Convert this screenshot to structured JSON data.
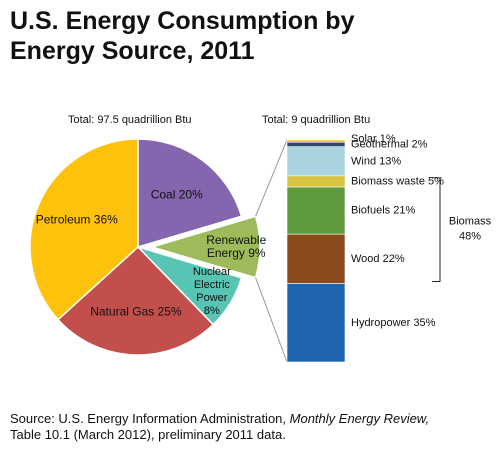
{
  "title": "U.S. Energy Consumption by Energy Source, 2011",
  "chart_data": [
    {
      "type": "pie",
      "subtitle": "Total:  97.5 quadrillion Btu",
      "categories": [
        "Coal",
        "Renewable Energy",
        "Nuclear Electric Power",
        "Natural Gas",
        "Petroleum"
      ],
      "values": [
        20,
        9,
        8,
        25,
        36
      ],
      "value_labels": [
        "20%",
        "9%",
        "8%",
        "25%",
        "36%"
      ],
      "colors": [
        "#8466ae",
        "#9dbb5b",
        "#57c4b4",
        "#c24f4c",
        "#fec20c"
      ]
    },
    {
      "type": "stacked_bar",
      "subtitle": "Total:  9 quadrillion Btu",
      "categories": [
        "Solar",
        "Geothermal",
        "Wind",
        "Biomass waste",
        "Biofuels",
        "Wood",
        "Hydropower"
      ],
      "values": [
        1,
        2,
        13,
        5,
        21,
        22,
        35
      ],
      "value_labels": [
        "1%",
        "2%",
        "13%",
        "5%",
        "21%",
        "22%",
        "35%"
      ],
      "colors": [
        "#f5c21b",
        "#2a4d6e",
        "#a8d3df",
        "#d6c544",
        "#5d9b3d",
        "#8b4b1d",
        "#1f65b0"
      ],
      "annotation": {
        "label": "Biomass",
        "value": 48,
        "value_label": "48%"
      }
    }
  ],
  "source": {
    "text": "Source: U.S. Energy Information Administration,",
    "italic": "Monthly Energy Review,",
    "rest": "Table 10.1 (March 2012), preliminary 2011 data."
  }
}
